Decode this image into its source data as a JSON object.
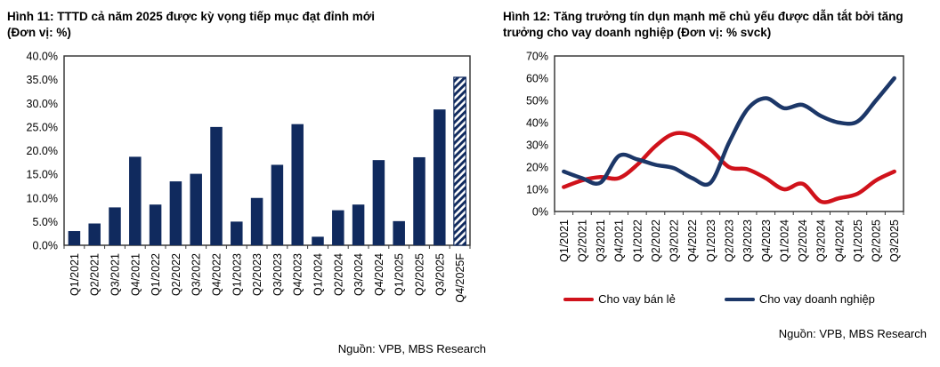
{
  "figures": [
    {
      "title": "Hình 11: TTTD cả năm 2025 được kỳ vọng tiếp mục đạt đỉnh mới",
      "unit_line": "(Đơn vị: %)",
      "source": "Nguồn: VPB, MBS Research"
    },
    {
      "title": "Hình 12: Tăng trưởng tín dụn mạnh mẽ chủ yếu được dẫn tắt bởi tăng trưởng cho vay doanh nghiệp (Đơn vị: % svck)",
      "unit_line": "",
      "source": "Nguồn: VPB, MBS Research"
    }
  ],
  "chart_data": [
    {
      "type": "bar",
      "title": "Hình 11: TTTD cả năm 2025 được kỳ vọng tiếp mục đạt đỉnh mới (Đơn vị: %)",
      "categories": [
        "Q1/2021",
        "Q2/2021",
        "Q3/2021",
        "Q4/2021",
        "Q1/2022",
        "Q2/2022",
        "Q3/2022",
        "Q4/2022",
        "Q1/2023",
        "Q2/2023",
        "Q3/2023",
        "Q4/2023",
        "Q1/2024",
        "Q2/2024",
        "Q3/2024",
        "Q4/2024",
        "Q1/2025",
        "Q2/2025",
        "Q3/2025",
        "Q4/2025F"
      ],
      "values": [
        3.0,
        4.6,
        8.0,
        18.7,
        8.6,
        13.5,
        15.1,
        25.0,
        5.0,
        10.0,
        17.0,
        25.6,
        1.8,
        7.4,
        8.6,
        18.0,
        5.1,
        18.6,
        28.7,
        35.5
      ],
      "bar_color": "#102a5e",
      "forecast_index": 19,
      "forecast_style": "diagonal-hatch",
      "xlabel": "",
      "ylabel": "",
      "ylim": [
        0,
        40
      ],
      "ytick_values": [
        0,
        5,
        10,
        15,
        20,
        25,
        30,
        35,
        40
      ],
      "ytick_labels": [
        "0.0%",
        "5.0%",
        "10.0%",
        "15.0%",
        "20.0%",
        "25.0%",
        "30.0%",
        "35.0%",
        "40.0%"
      ],
      "grid": false,
      "legend_position": "none"
    },
    {
      "type": "line",
      "title": "Hình 12: Tăng trưởng tín dụn mạnh mẽ chủ yếu được dẫn tắt bởi tăng trưởng cho vay doanh nghiệp (Đơn vị: % svck)",
      "categories": [
        "Q1/2021",
        "Q2/2021",
        "Q3/2021",
        "Q4/2021",
        "Q1/2022",
        "Q2/2022",
        "Q3/2022",
        "Q4/2022",
        "Q1/2023",
        "Q2/2023",
        "Q3/2023",
        "Q4/2023",
        "Q1/2024",
        "Q2/2024",
        "Q3/2024",
        "Q4/2024",
        "Q1/2025",
        "Q2/2025",
        "Q3/2025"
      ],
      "series": [
        {
          "name": "Cho vay bán lẻ",
          "color": "#d0121b",
          "values": [
            11,
            14,
            15.5,
            15,
            21,
            29.5,
            35,
            34,
            28,
            20,
            19,
            15,
            10,
            12.5,
            4.5,
            6,
            8,
            14,
            18
          ]
        },
        {
          "name": "Cho vay doanh nghiệp",
          "color": "#1c3768",
          "values": [
            18,
            15,
            13,
            25,
            23.5,
            21,
            19.5,
            15,
            13,
            31,
            46,
            51,
            46.5,
            48,
            43,
            40,
            40.5,
            50,
            60
          ]
        }
      ],
      "xlabel": "",
      "ylabel": "",
      "ylim": [
        0,
        70
      ],
      "ytick_values": [
        0,
        10,
        20,
        30,
        40,
        50,
        60,
        70
      ],
      "ytick_labels": [
        "0%",
        "10%",
        "20%",
        "30%",
        "40%",
        "50%",
        "60%",
        "70%"
      ],
      "grid": false,
      "legend_position": "bottom"
    }
  ]
}
